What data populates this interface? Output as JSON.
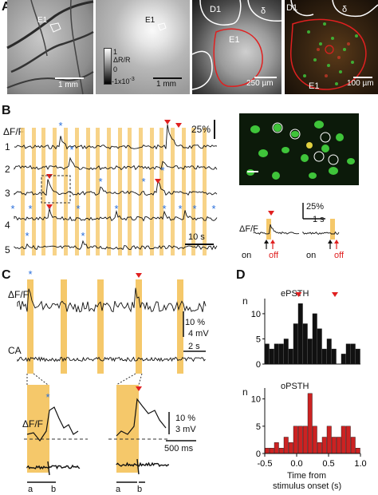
{
  "panels": {
    "A": {
      "label": "A",
      "img1": {
        "roi": "E1",
        "scale": "1 mm"
      },
      "img2": {
        "roi": "E1",
        "cbar_top": "1",
        "cbar_mid": "0",
        "cbar_bot": "-1x10",
        "cbar_exp": "-3",
        "cbar_title": "ΔR/R",
        "scale": "1 mm"
      },
      "img3": {
        "d1": "D1",
        "delta": "δ",
        "e1": "E1",
        "scale": "250 µm"
      },
      "img4": {
        "d1": "D1",
        "delta": "δ",
        "e1": "E1",
        "scale": "100 µm"
      }
    },
    "B": {
      "label": "B",
      "ylabel": "ΔF/F",
      "row_labels": [
        "1",
        "2",
        "3",
        "4",
        "5"
      ],
      "scale_y": "25%",
      "scale_x": "10 s",
      "inset": {
        "scale_y": "25%",
        "scale_x": "1 s",
        "ylabel": "ΔF/F",
        "on1": "on",
        "off1": "off",
        "on2": "on",
        "off2": "off"
      }
    },
    "C": {
      "label": "C",
      "trace1": "ΔF/F",
      "trace2": "CA",
      "scale1": "10 %",
      "scale2": "4 mV",
      "scale3": "2 s",
      "zoom_ylabel": "ΔF/F",
      "zoom_scale1": "10 %",
      "zoom_scale2": "3 mV",
      "zoom_scale3": "500 ms",
      "a1": "a",
      "b1": "b",
      "a2": "a",
      "b2": "b"
    },
    "D": {
      "label": "D",
      "hist1_title": "ePSTH",
      "hist2_title": "oPSTH",
      "ylabel": "n",
      "xlabel1": "Time from",
      "xlabel2": "stimulus onset (s)",
      "y1_ticks": [
        "0",
        "5",
        "10"
      ],
      "y2_ticks": [
        "0",
        "5",
        "10"
      ],
      "x_ticks": [
        "-0.5",
        "0.0",
        "0.5",
        "1.0"
      ]
    }
  },
  "colors": {
    "accent_red": "#e02020",
    "stim_orange": "#f5c86a",
    "star_blue": "#2a6fdb",
    "hist_black": "#111111",
    "hist_red": "#cc2222",
    "green_cell": "#3fc43a"
  },
  "chart_data": [
    {
      "type": "bar",
      "title": "ePSTH",
      "ylabel": "n",
      "xlabel": "Time from stimulus onset (s)",
      "xlim": [
        -0.5,
        1.0
      ],
      "ylim": [
        0,
        13
      ],
      "x": [
        -0.45,
        -0.375,
        -0.3,
        -0.225,
        -0.15,
        -0.075,
        0.0,
        0.075,
        0.15,
        0.225,
        0.3,
        0.375,
        0.45,
        0.525,
        0.6,
        0.675,
        0.75,
        0.825,
        0.9,
        0.975
      ],
      "values": [
        4,
        3,
        4,
        4,
        5,
        3,
        8,
        12,
        8,
        5,
        10,
        7,
        3,
        5,
        3,
        0,
        2,
        4,
        4,
        3
      ]
    },
    {
      "type": "bar",
      "title": "oPSTH",
      "ylabel": "n",
      "xlabel": "Time from stimulus onset (s)",
      "xlim": [
        -0.5,
        1.0
      ],
      "ylim": [
        0,
        12
      ],
      "x": [
        -0.45,
        -0.375,
        -0.3,
        -0.225,
        -0.15,
        -0.075,
        0.0,
        0.075,
        0.15,
        0.225,
        0.3,
        0.375,
        0.45,
        0.525,
        0.6,
        0.675,
        0.75,
        0.825,
        0.9,
        0.975
      ],
      "values": [
        1,
        1,
        2,
        1,
        3,
        2,
        5,
        5,
        5,
        11,
        5,
        2,
        3,
        5,
        3,
        3,
        5,
        5,
        3,
        1
      ]
    }
  ]
}
